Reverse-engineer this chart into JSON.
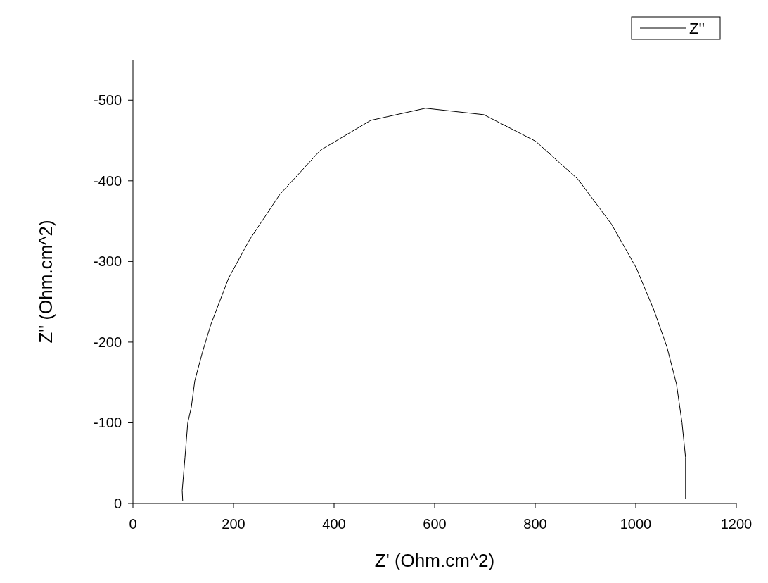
{
  "chart_data": {
    "type": "line",
    "xlabel": "Z' (Ohm.cm^2)",
    "ylabel": "Z'' (Ohm.cm^2)",
    "xlim": [
      0,
      1200
    ],
    "xticks": [
      0,
      200,
      400,
      600,
      800,
      1000,
      1200
    ],
    "ylim": [
      0,
      -550
    ],
    "yticks": [
      0,
      -100,
      -200,
      -300,
      -400,
      -500
    ],
    "legend": "top right",
    "series": [
      {
        "name": "Z''",
        "color": "#000000",
        "x": [
          99,
          98,
          103.5,
          109,
          116,
          123,
          138,
          155,
          190,
          232,
          292,
          373,
          473,
          582,
          698,
          801,
          885,
          952,
          1001,
          1036,
          1062,
          1081,
          1092,
          1099,
          1099
        ],
        "values": [
          -3,
          -16,
          -57,
          -100,
          -119,
          -152,
          -187,
          -222,
          -279,
          -327,
          -383,
          -438,
          -475,
          -490,
          -482,
          -449,
          -402,
          -346,
          -292,
          -240,
          -194,
          -148,
          -100,
          -57,
          -6
        ]
      }
    ]
  }
}
